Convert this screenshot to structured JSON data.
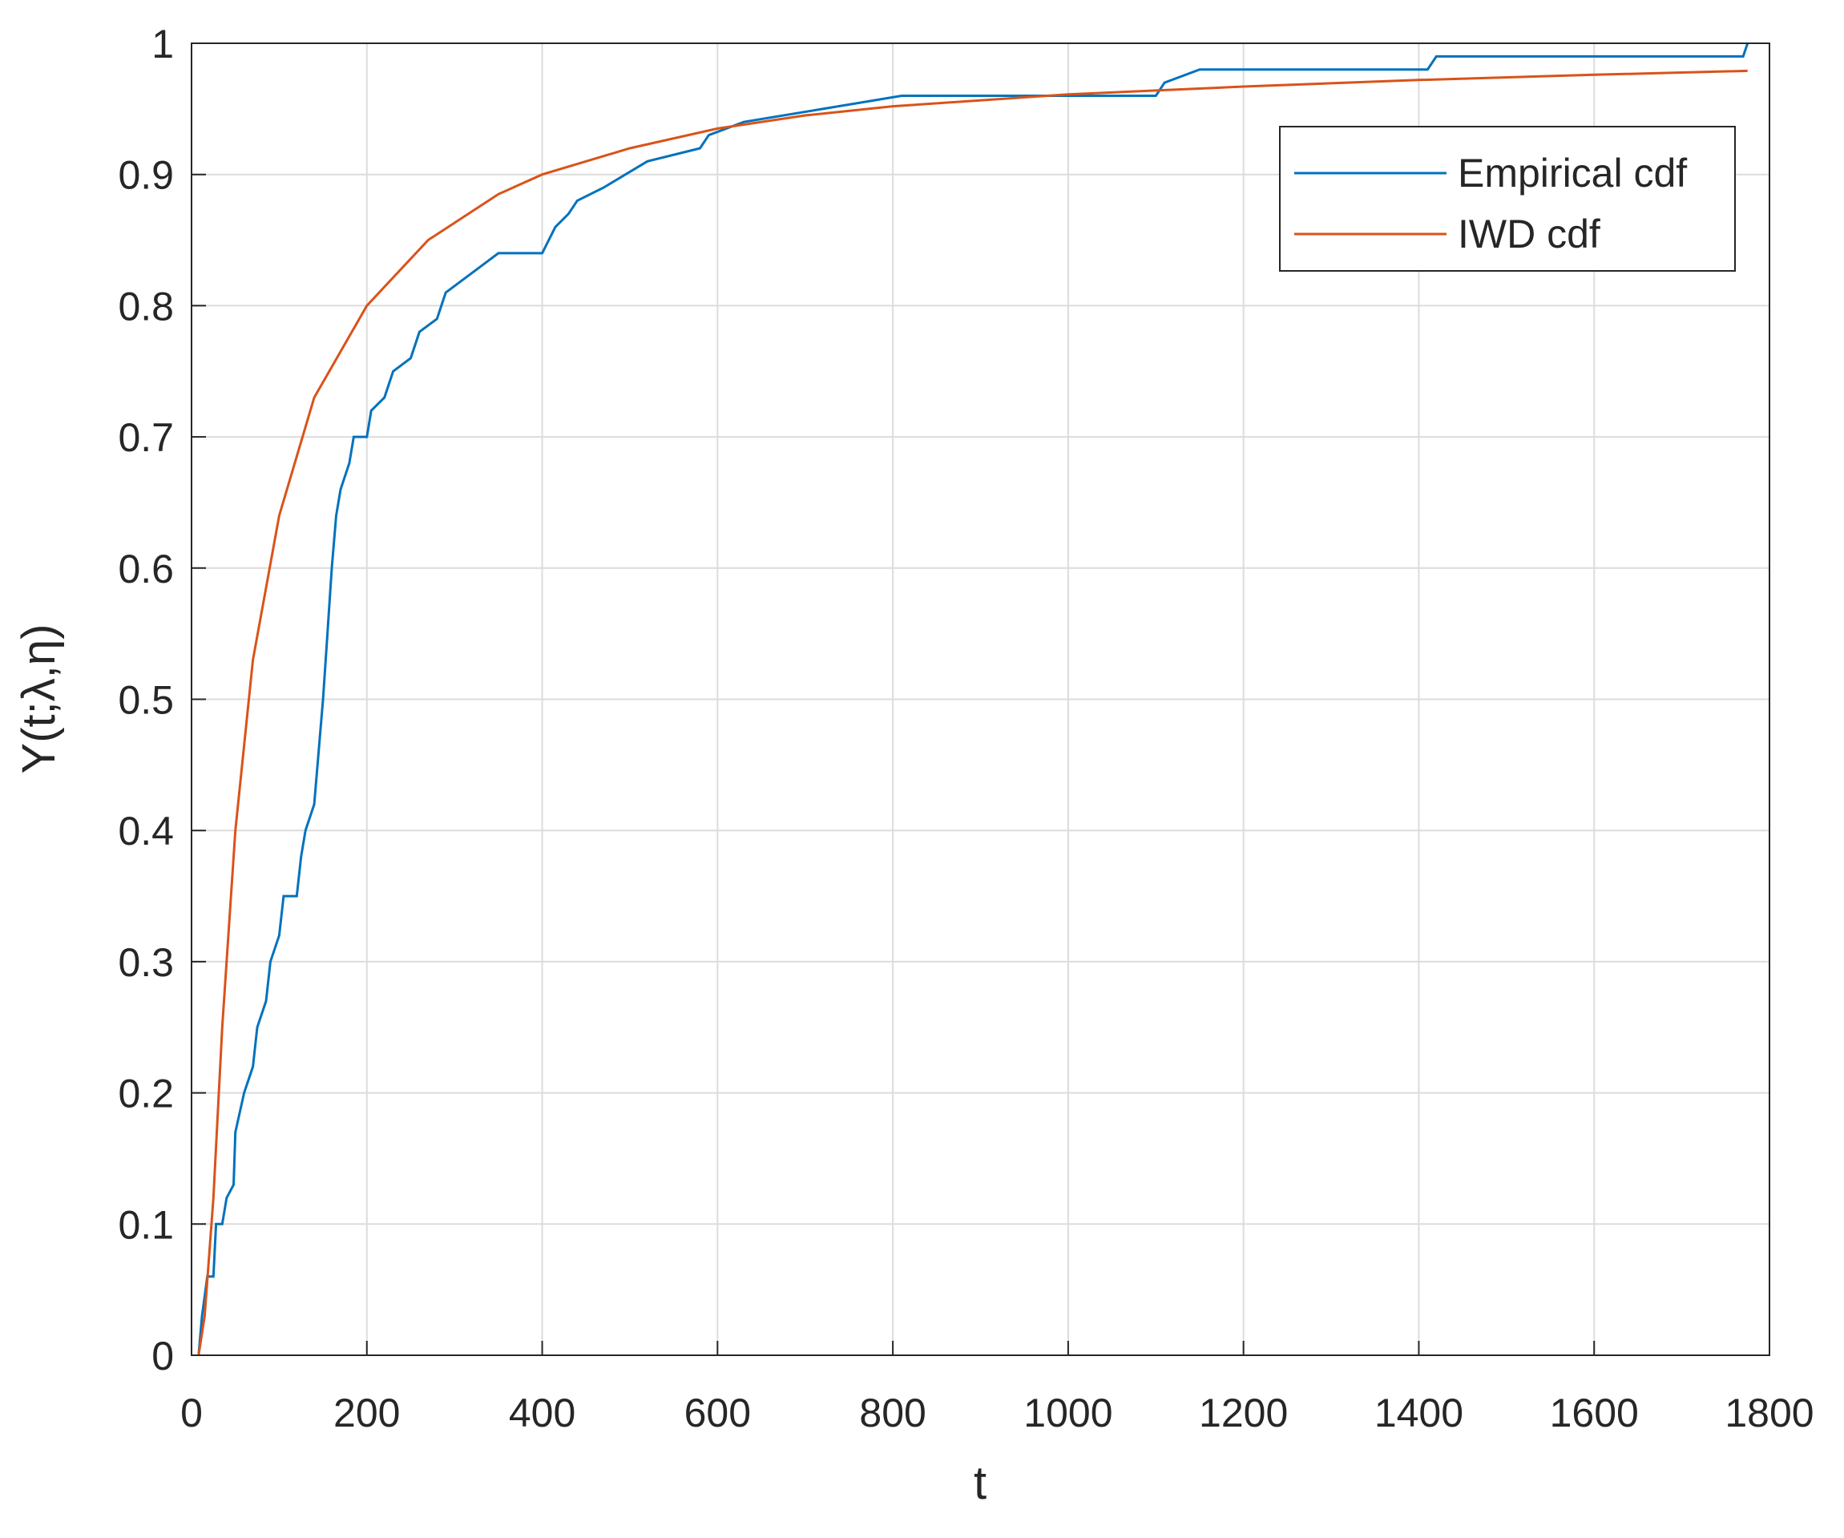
{
  "chart_data": {
    "type": "line",
    "xlabel": "t",
    "ylabel": "Y(t;λ,η)",
    "xlim": [
      0,
      1800
    ],
    "ylim": [
      0,
      1
    ],
    "xticks": [
      0,
      200,
      400,
      600,
      800,
      1000,
      1200,
      1400,
      1600,
      1800
    ],
    "yticks": [
      0,
      0.1,
      0.2,
      0.3,
      0.4,
      0.5,
      0.6,
      0.7,
      0.8,
      0.9,
      1
    ],
    "grid": true,
    "legend": "upper right",
    "series": [
      {
        "name": "Empirical cdf",
        "color": "#0072bd",
        "x": [
          8,
          12,
          18,
          25,
          28,
          35,
          40,
          48,
          50,
          60,
          70,
          75,
          85,
          90,
          100,
          105,
          120,
          125,
          130,
          140,
          145,
          150,
          155,
          160,
          165,
          170,
          180,
          185,
          200,
          205,
          220,
          230,
          250,
          260,
          280,
          290,
          310,
          330,
          350,
          400,
          415,
          430,
          440,
          470,
          520,
          580,
          590,
          630,
          720,
          810,
          1100,
          1110,
          1150,
          1410,
          1420,
          1770,
          1775
        ],
        "values": [
          0,
          0.03,
          0.06,
          0.06,
          0.1,
          0.1,
          0.12,
          0.13,
          0.17,
          0.2,
          0.22,
          0.25,
          0.27,
          0.3,
          0.32,
          0.35,
          0.35,
          0.38,
          0.4,
          0.42,
          0.46,
          0.5,
          0.55,
          0.6,
          0.64,
          0.66,
          0.68,
          0.7,
          0.7,
          0.72,
          0.73,
          0.75,
          0.76,
          0.78,
          0.79,
          0.81,
          0.82,
          0.83,
          0.84,
          0.84,
          0.86,
          0.87,
          0.88,
          0.89,
          0.91,
          0.92,
          0.93,
          0.94,
          0.95,
          0.96,
          0.96,
          0.97,
          0.98,
          0.98,
          0.99,
          0.99,
          1
        ]
      },
      {
        "name": "IWD cdf",
        "color": "#d95319",
        "x": [
          8,
          15,
          25,
          35,
          50,
          70,
          100,
          140,
          200,
          270,
          350,
          400,
          500,
          600,
          700,
          800,
          1000,
          1200,
          1400,
          1600,
          1775
        ],
        "values": [
          0,
          0.03,
          0.12,
          0.25,
          0.4,
          0.53,
          0.64,
          0.73,
          0.8,
          0.85,
          0.885,
          0.9,
          0.92,
          0.935,
          0.945,
          0.952,
          0.961,
          0.967,
          0.972,
          0.976,
          0.979
        ]
      }
    ]
  }
}
